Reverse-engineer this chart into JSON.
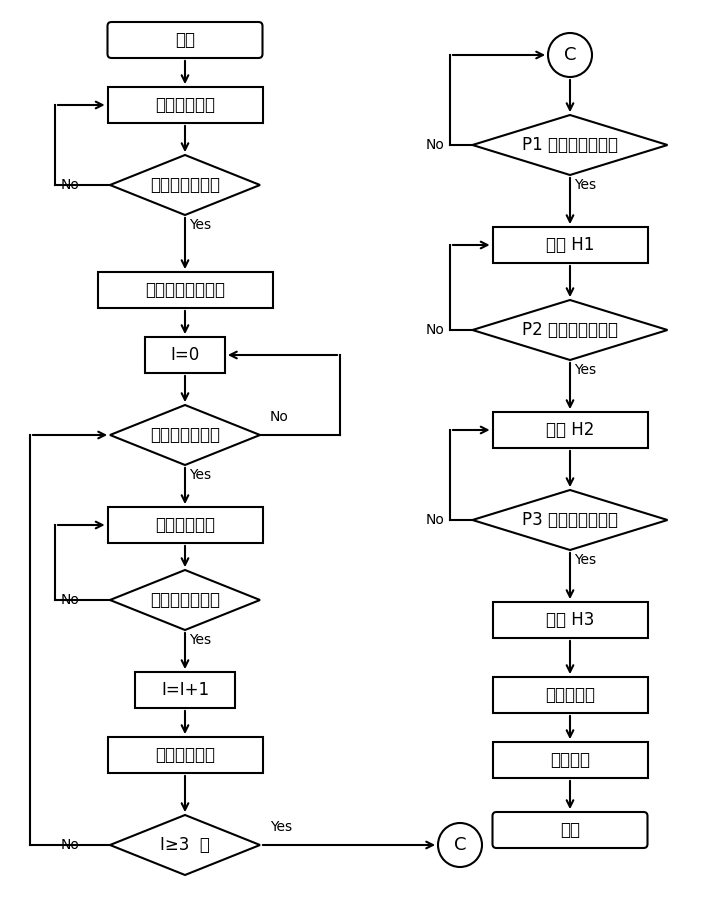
{
  "bg_color": "#ffffff",
  "line_color": "#000000",
  "text_color": "#000000",
  "font_size": 12,
  "font_size_small": 10,
  "nodes": {
    "start_label": "开始",
    "box1_label": "启动下压程序",
    "dia1_label": "力上升沿触发？",
    "box2_label": "测量弹簧原始高度",
    "box3_label": "I=0",
    "dia2_label": "压并位置触发？",
    "box4_label": "启动上拉程序",
    "dia3_label": "力下降沿触发？",
    "box5_label": "I=I+1",
    "box6_label": "启动下压程序",
    "dia4_label": "I≥3  ？",
    "c_label": "C",
    "dia5_label": "P1 力上升沿触发？",
    "box7_label": "测量 H1",
    "dia6_label": "P2 力上升沿触发？",
    "box8_label": "测量 H2",
    "dia7_label": "P3 力上升沿触发？",
    "box9_label": "测量 H3",
    "box10_label": "绘刚度曲线",
    "box11_label": "计算刚度",
    "end_label": "结束"
  }
}
